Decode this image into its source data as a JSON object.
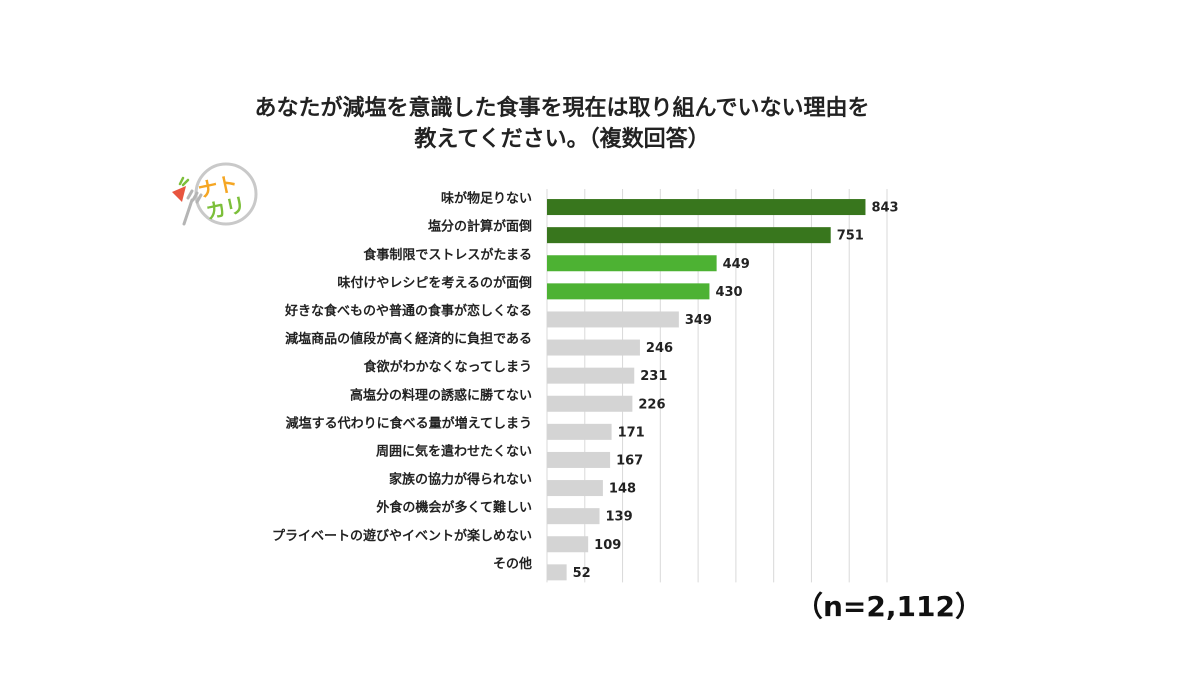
{
  "title_lines": [
    "あなたが減塩を意識した食事を現在は取り組んでいない理由を",
    "教えてください。（複数回答）"
  ],
  "logo": {
    "icon": "natokari-logo",
    "text": "ナトカリ",
    "colors": [
      "#f5a623",
      "#7cbf3a",
      "#e8553f",
      "#b5b5b5"
    ]
  },
  "sample_size": "（n=2,112）",
  "colors": {
    "dark_green": "#38761d",
    "light_green": "#4db233",
    "gray": "#d4d4d4",
    "grid": "#d9d9d9"
  },
  "chart_data": {
    "type": "bar",
    "orientation": "horizontal",
    "categories": [
      "味が物足りない",
      "塩分の計算が面倒",
      "食事制限でストレスがたまる",
      "味付けやレシピを考えるのが面倒",
      "好きな食べものや普通の食事が恋しくなる",
      "減塩商品の値段が高く経済的に負担である",
      "食欲がわかなくなってしまう",
      "高塩分の料理の誘惑に勝てない",
      "減塩する代わりに食べる量が増えてしまう",
      "周囲に気を遣わせたくない",
      "家族の協力が得られない",
      "外食の機会が多くて難しい",
      "プライベートの遊びやイベントが楽しめない",
      "その他"
    ],
    "values": [
      843,
      751,
      449,
      430,
      349,
      246,
      231,
      226,
      171,
      167,
      148,
      139,
      109,
      52
    ],
    "value_labels": [
      "843",
      "751",
      "449",
      "430",
      "349",
      "246",
      "231",
      "226",
      "171",
      "167",
      "148",
      "139",
      "109",
      "52"
    ],
    "bar_colors": [
      "#38761d",
      "#38761d",
      "#4db233",
      "#4db233",
      "#d4d4d4",
      "#d4d4d4",
      "#d4d4d4",
      "#d4d4d4",
      "#d4d4d4",
      "#d4d4d4",
      "#d4d4d4",
      "#d4d4d4",
      "#d4d4d4",
      "#d4d4d4"
    ],
    "xlim": [
      0,
      900
    ],
    "grid": true,
    "title": "",
    "xlabel": "",
    "ylabel": ""
  }
}
